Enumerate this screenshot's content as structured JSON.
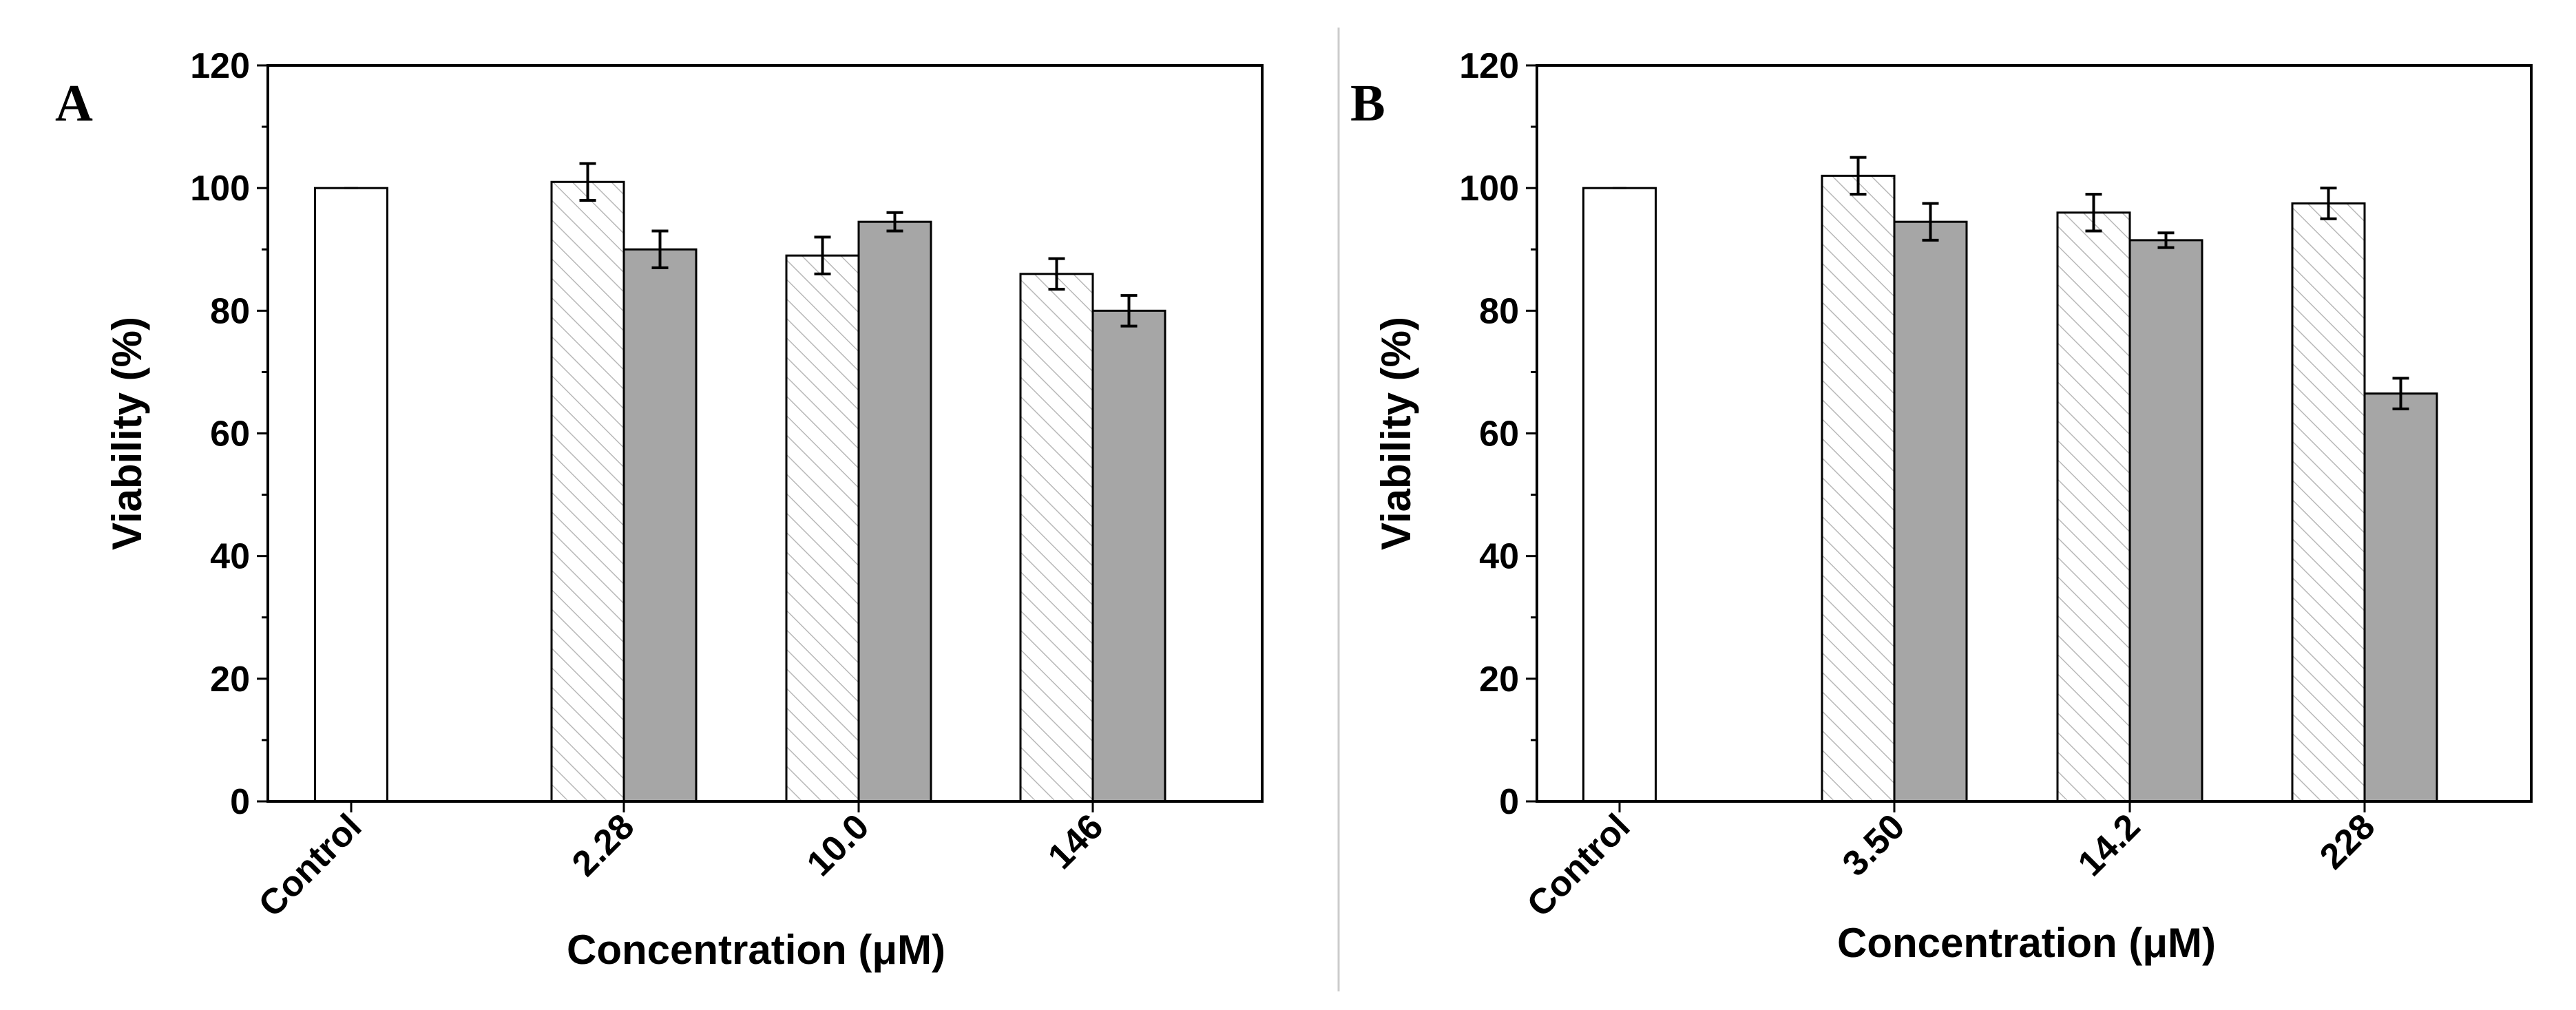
{
  "chart_data": [
    {
      "panel_label": "A",
      "type": "bar",
      "ylabel": "Viability (%)",
      "xlabel": "Concentration (μM)",
      "ylim": [
        0,
        120
      ],
      "yticks": [
        "0",
        "20",
        "40",
        "60",
        "80",
        "100",
        "120"
      ],
      "categories": [
        "Control",
        "2.28",
        "10.0",
        "146"
      ],
      "control": {
        "value": 100,
        "error": 0
      },
      "series": [
        {
          "name": "hatched",
          "fill": "hatched",
          "values": [
            null,
            101,
            89,
            86
          ],
          "errors": [
            null,
            3,
            3,
            2.5
          ]
        },
        {
          "name": "gray",
          "fill": "#a6a6a6",
          "values": [
            null,
            90,
            94.5,
            80
          ],
          "errors": [
            null,
            3,
            1.5,
            2.5
          ]
        }
      ]
    },
    {
      "panel_label": "B",
      "type": "bar",
      "ylabel": "Viability (%)",
      "xlabel": "Concentration (μM)",
      "ylim": [
        0,
        120
      ],
      "yticks": [
        "0",
        "20",
        "40",
        "60",
        "80",
        "100",
        "120"
      ],
      "categories": [
        "Control",
        "3.50",
        "14.2",
        "228"
      ],
      "control": {
        "value": 100,
        "error": 0
      },
      "series": [
        {
          "name": "hatched",
          "fill": "hatched",
          "values": [
            null,
            102,
            96,
            97.5
          ],
          "errors": [
            null,
            3,
            3,
            2.5
          ]
        },
        {
          "name": "gray",
          "fill": "#a6a6a6",
          "values": [
            null,
            94.5,
            91.5,
            66.5
          ],
          "errors": [
            null,
            3,
            1.2,
            2.5
          ]
        }
      ]
    }
  ]
}
